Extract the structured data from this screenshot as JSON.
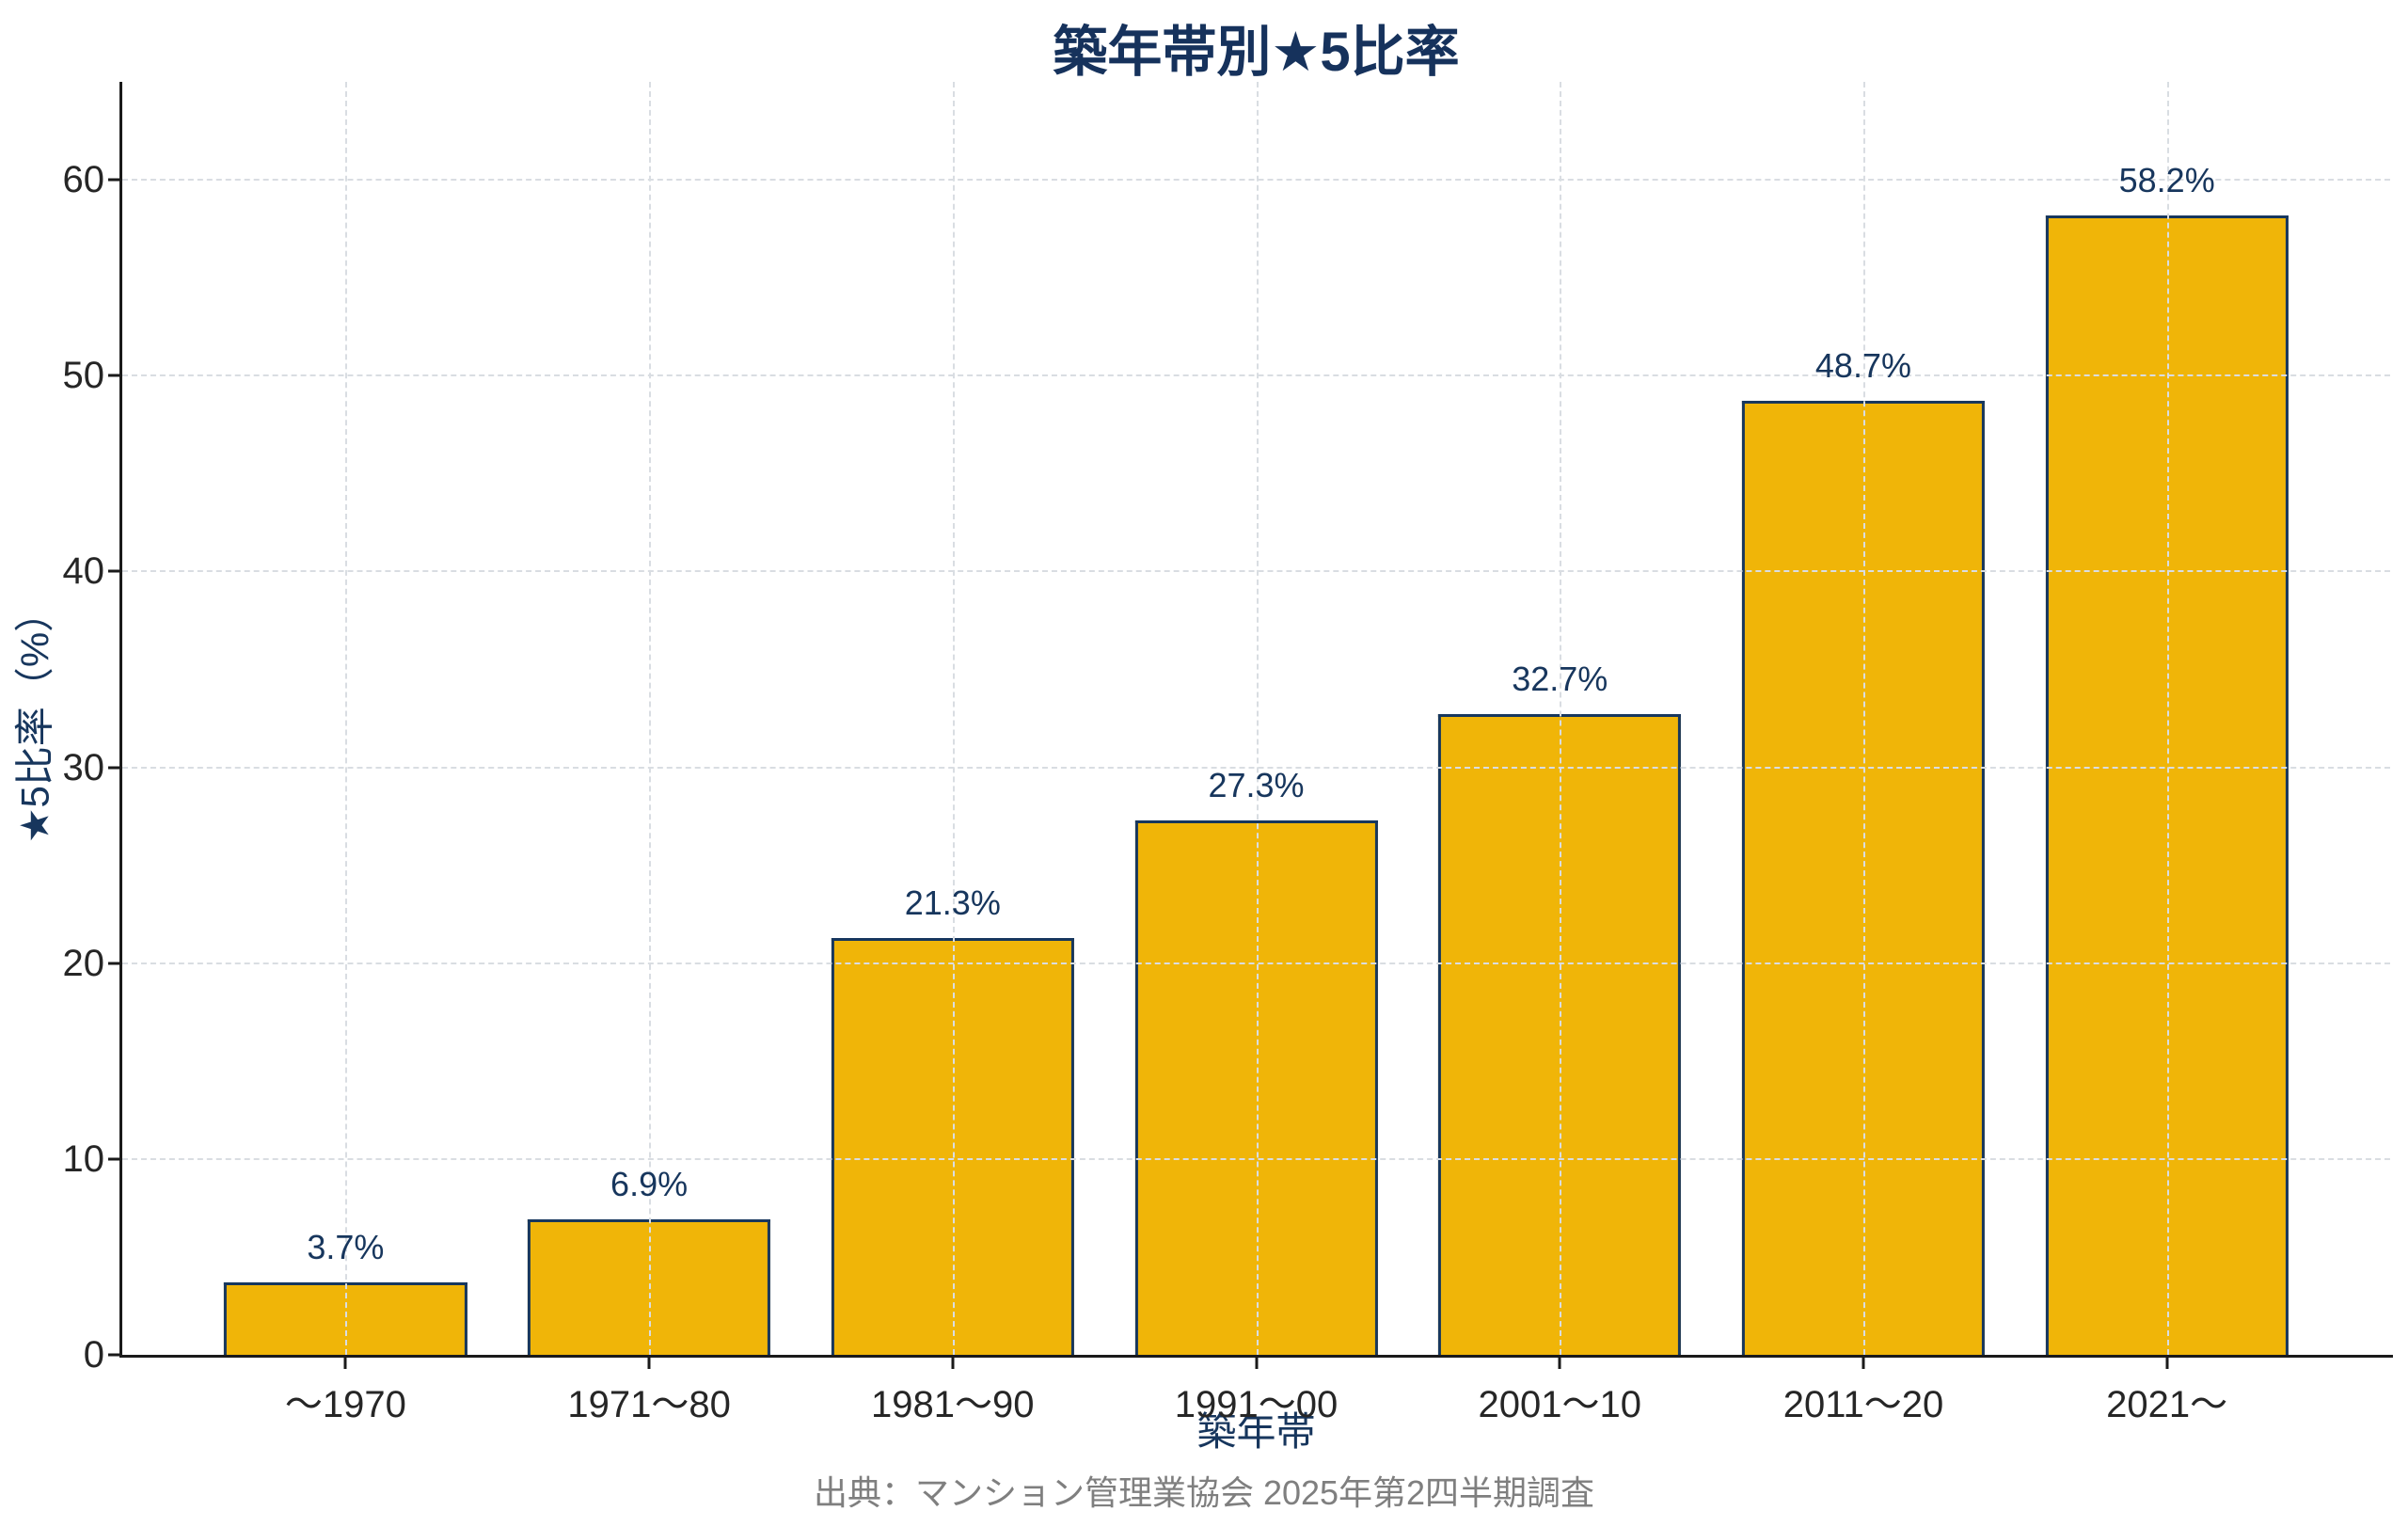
{
  "page": {
    "title": "築年帯別★5比率",
    "source_note": "出典：マンション管理業協会 2025年第2四半期調査"
  },
  "chart_data": {
    "type": "bar",
    "title": "築年帯別★5比率",
    "categories": [
      "〜1970",
      "1971〜80",
      "1981〜90",
      "1991〜00",
      "2001〜10",
      "2011〜20",
      "2021〜"
    ],
    "values": [
      3.7,
      6.9,
      21.3,
      27.3,
      32.7,
      48.7,
      58.2
    ],
    "value_labels": [
      "3.7%",
      "6.9%",
      "21.3%",
      "27.3%",
      "32.7%",
      "48.7%",
      "58.2%"
    ],
    "xlabel": "築年帯",
    "ylabel": "★5比率（%）",
    "ylim": [
      0,
      65
    ],
    "yticks": [
      0,
      10,
      20,
      30,
      40,
      50,
      60
    ],
    "grid": {
      "horizontal": true,
      "vertical": true,
      "style": "dashed",
      "drawn_above_bars": true
    },
    "legend": "none",
    "source_note": "出典：マンション管理業協会 2025年第2四半期調査",
    "colors": {
      "bar_fill": "#F0B508",
      "bar_border": "#17375E",
      "title_text": "#16325C",
      "data_label_text": "#17365D",
      "axis_label_text": "#17365D",
      "tick_label_text": "#262626",
      "axis_line": "#1A1A1A",
      "gridline": "#D9DDE2",
      "source_text": "#7F7F7F",
      "background": "#FFFFFF"
    }
  }
}
